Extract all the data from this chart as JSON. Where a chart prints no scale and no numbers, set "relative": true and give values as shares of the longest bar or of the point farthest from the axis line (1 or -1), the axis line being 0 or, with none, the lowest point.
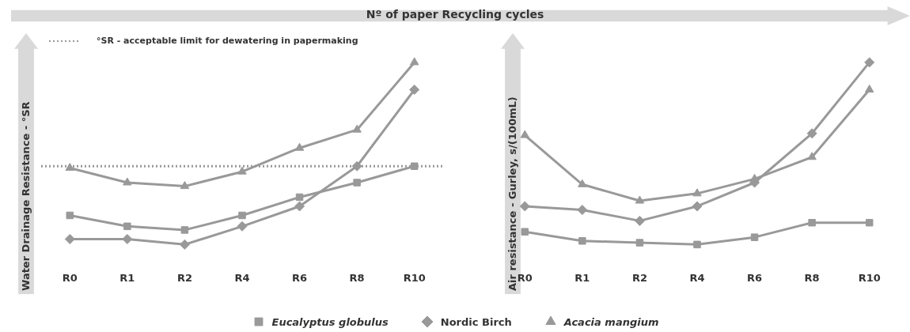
{
  "chart_data": [
    {
      "type": "line",
      "title": "Nº of paper Recycling cycles",
      "ylabel": "Water Drainage Resistance - °SR",
      "relative": true,
      "categories": [
        "R0",
        "R1",
        "R2",
        "R4",
        "R6",
        "R8",
        "R10"
      ],
      "grid": false,
      "legend": "bottom",
      "series": [
        {
          "name": "Eucalyptus globulus",
          "color": "#999999",
          "marker": "square",
          "values": [
            0.16,
            0.1,
            0.08,
            0.16,
            0.26,
            0.34,
            0.43
          ]
        },
        {
          "name": "Nordic Birch",
          "color": "#999999",
          "marker": "diamond",
          "values": [
            0.03,
            0.03,
            0,
            0.1,
            0.21,
            0.43,
            0.85
          ]
        },
        {
          "name": "Acacia mangium",
          "color": "#999999",
          "marker": "triangle",
          "values": [
            0.42,
            0.34,
            0.32,
            0.4,
            0.53,
            0.63,
            1
          ]
        }
      ],
      "ref_lines": [
        {
          "axis": "y",
          "value": 0.43,
          "label": "°SR - acceptable limit for dewatering in papermaking",
          "color": "#999999",
          "line_style": "dotted"
        }
      ]
    },
    {
      "type": "line",
      "ylabel": "Air resistance  - Gurley, s/(100mL)",
      "relative": true,
      "categories": [
        "R0",
        "R1",
        "R2",
        "R4",
        "R6",
        "R8",
        "R10"
      ],
      "grid": false,
      "series": [
        {
          "color": "#999999",
          "marker": "square",
          "values": [
            0.07,
            0.02,
            0.01,
            0,
            0.04,
            0.12,
            0.12
          ]
        },
        {
          "color": "#999999",
          "marker": "diamond",
          "values": [
            0.21,
            0.19,
            0.13,
            0.21,
            0.34,
            0.61,
            1
          ]
        },
        {
          "color": "#999999",
          "marker": "triangle",
          "values": [
            0.6,
            0.33,
            0.24,
            0.28,
            0.36,
            0.48,
            0.85
          ]
        }
      ]
    }
  ]
}
